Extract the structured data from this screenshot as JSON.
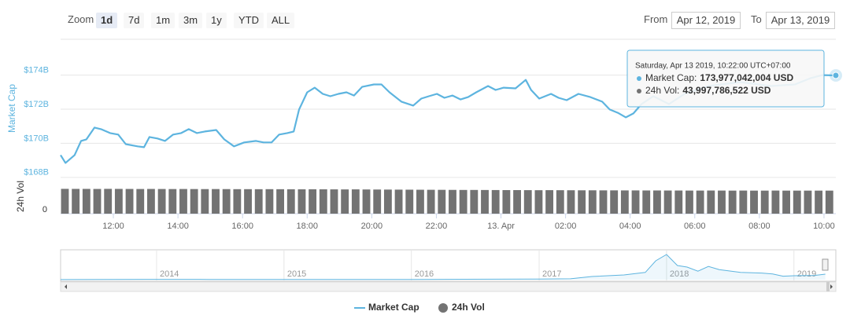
{
  "toolbar": {
    "zoom_label": "Zoom",
    "ranges": [
      "1d",
      "7d",
      "1m",
      "3m",
      "1y",
      "YTD",
      "ALL"
    ]
  },
  "date_range": {
    "from_label": "From",
    "from": "Apr 12, 2019",
    "to_label": "To",
    "to": "Apr 13, 2019"
  },
  "chart_data": [
    {
      "type": "line",
      "ylabel": "Market Cap",
      "y2label": "24h Vol",
      "xlim": [
        "2019-04-12T10:22",
        "2019-04-13T10:22"
      ],
      "xticks": [
        {
          "value": "2019-04-12T12:00",
          "label": "12:00"
        },
        {
          "value": "2019-04-12T14:00",
          "label": "14:00"
        },
        {
          "value": "2019-04-12T16:00",
          "label": "16:00"
        },
        {
          "value": "2019-04-12T18:00",
          "label": "18:00"
        },
        {
          "value": "2019-04-12T20:00",
          "label": "20:00"
        },
        {
          "value": "2019-04-12T22:00",
          "label": "22:00"
        },
        {
          "value": "2019-04-13T00:00",
          "label": "13. Apr"
        },
        {
          "value": "2019-04-13T02:00",
          "label": "02:00"
        },
        {
          "value": "2019-04-13T04:00",
          "label": "04:00"
        },
        {
          "value": "2019-04-13T06:00",
          "label": "06:00"
        },
        {
          "value": "2019-04-13T08:00",
          "label": "08:00"
        },
        {
          "value": "2019-04-13T10:00",
          "label": "10:00"
        }
      ],
      "ylim": [
        167.9,
        176.1
      ],
      "yticks": [
        {
          "value": 168,
          "label": "$168B"
        },
        {
          "value": 170,
          "label": "$170B"
        },
        {
          "value": 172,
          "label": "$172B"
        },
        {
          "value": 174,
          "label": "$174B"
        }
      ],
      "y2lim": [
        0,
        60
      ],
      "y2ticks": [
        0
      ],
      "grid": true,
      "series": [
        {
          "name": "Market Cap",
          "color": "#5db4df",
          "x": [
            "2019-04-12T10:22",
            "2019-04-12T10:31",
            "2019-04-12T10:48",
            "2019-04-12T11:00",
            "2019-04-12T11:10",
            "2019-04-12T11:25",
            "2019-04-12T11:37",
            "2019-04-12T11:54",
            "2019-04-12T12:09",
            "2019-04-12T12:23",
            "2019-04-12T12:45",
            "2019-04-12T12:57",
            "2019-04-12T13:07",
            "2019-04-12T13:22",
            "2019-04-12T13:36",
            "2019-04-12T13:51",
            "2019-04-12T14:06",
            "2019-04-12T14:20",
            "2019-04-12T14:35",
            "2019-04-12T14:50",
            "2019-04-12T15:11",
            "2019-04-12T15:26",
            "2019-04-12T15:44",
            "2019-04-12T16:03",
            "2019-04-12T16:25",
            "2019-04-12T16:39",
            "2019-04-12T16:54",
            "2019-04-12T17:08",
            "2019-04-12T17:23",
            "2019-04-12T17:35",
            "2019-04-12T17:45",
            "2019-04-12T18:00",
            "2019-04-12T18:14",
            "2019-04-12T18:29",
            "2019-04-12T18:43",
            "2019-04-12T18:58",
            "2019-04-12T19:13",
            "2019-04-12T19:27",
            "2019-04-12T19:42",
            "2019-04-12T20:04",
            "2019-04-12T20:18",
            "2019-04-12T20:33",
            "2019-04-12T20:55",
            "2019-04-12T21:17",
            "2019-04-12T21:32",
            "2019-04-12T21:46",
            "2019-04-12T22:01",
            "2019-04-12T22:15",
            "2019-04-12T22:30",
            "2019-04-12T22:45",
            "2019-04-12T22:59",
            "2019-04-12T23:14",
            "2019-04-12T23:36",
            "2019-04-12T23:50",
            "2019-04-13T00:05",
            "2019-04-13T00:27",
            "2019-04-13T00:46",
            "2019-04-13T00:56",
            "2019-04-13T01:11",
            "2019-04-13T01:33",
            "2019-04-13T01:47",
            "2019-04-13T02:02",
            "2019-04-13T02:24",
            "2019-04-13T02:46",
            "2019-04-13T03:08",
            "2019-04-13T03:22",
            "2019-04-13T03:37",
            "2019-04-13T03:52",
            "2019-04-13T04:06",
            "2019-04-13T04:21",
            "2019-04-13T04:43",
            "2019-04-13T05:12",
            "2019-04-13T05:41",
            "2019-04-13T06:25",
            "2019-04-13T07:24",
            "2019-04-13T08:22",
            "2019-04-13T09:06",
            "2019-04-13T09:35",
            "2019-04-13T09:57",
            "2019-04-13T10:22"
          ],
          "values": [
            169.31,
            168.85,
            169.31,
            170.14,
            170.23,
            170.92,
            170.83,
            170.6,
            170.51,
            169.95,
            169.82,
            169.77,
            170.37,
            170.28,
            170.14,
            170.51,
            170.6,
            170.83,
            170.6,
            170.69,
            170.78,
            170.23,
            169.82,
            170.05,
            170.14,
            170.05,
            170.05,
            170.51,
            170.6,
            170.69,
            171.98,
            172.99,
            173.26,
            172.9,
            172.76,
            172.9,
            172.99,
            172.8,
            173.31,
            173.45,
            173.45,
            172.99,
            172.44,
            172.21,
            172.62,
            172.76,
            172.9,
            172.67,
            172.8,
            172.57,
            172.71,
            172.99,
            173.36,
            173.13,
            173.26,
            173.22,
            173.72,
            173.13,
            172.62,
            172.9,
            172.67,
            172.53,
            172.9,
            172.71,
            172.44,
            171.98,
            171.79,
            171.52,
            171.75,
            172.3,
            172.76,
            172.3,
            172.9,
            173.36,
            173.59,
            173.36,
            173.45,
            173.82,
            174.0,
            173.98
          ]
        },
        {
          "name": "24h Vol",
          "type": "column",
          "axis": "y2",
          "color": "#737373",
          "x": [
            "2019-04-12T10:30",
            "2019-04-12T10:50",
            "2019-04-12T11:10",
            "2019-04-12T11:30",
            "2019-04-12T11:50",
            "2019-04-12T12:10",
            "2019-04-12T12:30",
            "2019-04-12T12:50",
            "2019-04-12T13:10",
            "2019-04-12T13:30",
            "2019-04-12T13:50",
            "2019-04-12T14:10",
            "2019-04-12T14:30",
            "2019-04-12T14:50",
            "2019-04-12T15:10",
            "2019-04-12T15:30",
            "2019-04-12T15:50",
            "2019-04-12T16:10",
            "2019-04-12T16:30",
            "2019-04-12T16:50",
            "2019-04-12T17:10",
            "2019-04-12T17:30",
            "2019-04-12T17:50",
            "2019-04-12T18:10",
            "2019-04-12T18:30",
            "2019-04-12T18:50",
            "2019-04-12T19:10",
            "2019-04-12T19:30",
            "2019-04-12T19:50",
            "2019-04-12T20:10",
            "2019-04-12T20:30",
            "2019-04-12T20:50",
            "2019-04-12T21:10",
            "2019-04-12T21:30",
            "2019-04-12T21:50",
            "2019-04-12T22:10",
            "2019-04-12T22:30",
            "2019-04-12T22:50",
            "2019-04-12T23:10",
            "2019-04-12T23:30",
            "2019-04-12T23:50",
            "2019-04-13T00:10",
            "2019-04-13T00:30",
            "2019-04-13T00:50",
            "2019-04-13T01:10",
            "2019-04-13T01:30",
            "2019-04-13T01:50",
            "2019-04-13T02:10",
            "2019-04-13T02:30",
            "2019-04-13T02:50",
            "2019-04-13T03:10",
            "2019-04-13T03:30",
            "2019-04-13T03:50",
            "2019-04-13T04:10",
            "2019-04-13T04:30",
            "2019-04-13T04:50",
            "2019-04-13T05:10",
            "2019-04-13T05:30",
            "2019-04-13T05:50",
            "2019-04-13T06:10",
            "2019-04-13T06:30",
            "2019-04-13T06:50",
            "2019-04-13T07:10",
            "2019-04-13T07:30",
            "2019-04-13T07:50",
            "2019-04-13T08:10",
            "2019-04-13T08:30",
            "2019-04-13T08:50",
            "2019-04-13T09:10",
            "2019-04-13T09:30",
            "2019-04-13T09:50",
            "2019-04-13T10:10"
          ],
          "values": [
            47.4,
            47.3,
            47.3,
            47.2,
            47.4,
            47.3,
            47.2,
            47.1,
            47.2,
            47.1,
            47.0,
            47.1,
            47.0,
            46.9,
            47.0,
            46.9,
            46.8,
            46.8,
            46.7,
            46.8,
            46.7,
            46.6,
            46.5,
            46.6,
            46.5,
            46.4,
            46.3,
            46.4,
            46.2,
            46.1,
            46.0,
            45.9,
            45.8,
            45.7,
            45.6,
            45.5,
            45.4,
            45.3,
            45.3,
            45.2,
            45.1,
            45.0,
            45.0,
            44.9,
            44.8,
            44.9,
            44.8,
            44.7,
            44.6,
            44.6,
            44.5,
            44.5,
            44.4,
            44.4,
            44.3,
            44.3,
            44.2,
            44.2,
            44.1,
            44.1,
            44.2,
            44.1,
            44.0,
            44.1,
            44.0,
            44.0,
            44.1,
            44.0,
            44.0,
            44.0,
            44.0,
            44.0
          ]
        }
      ],
      "tooltip": {
        "title": "Saturday, Apr 13 2019, 10:22:00 UTC+07:00",
        "items": [
          {
            "label": "Market Cap:",
            "value": "173,977,042,004 USD"
          },
          {
            "label": "24h Vol:",
            "value": "43,997,786,522 USD"
          }
        ]
      }
    },
    {
      "type": "area",
      "xlim": [
        "2013-04",
        "2019-05"
      ],
      "xticks": [
        {
          "value": "2014-01",
          "label": "2014"
        },
        {
          "value": "2015-01",
          "label": "2015"
        },
        {
          "value": "2016-01",
          "label": "2016"
        },
        {
          "value": "2017-01",
          "label": "2017"
        },
        {
          "value": "2018-01",
          "label": "2018"
        },
        {
          "value": "2019-01",
          "label": "2019"
        }
      ],
      "ylim": [
        0,
        900
      ],
      "color": "#5db4df",
      "x": [
        "2013-04",
        "2013-12",
        "2014-06",
        "2015-01",
        "2015-06",
        "2016-01",
        "2016-06",
        "2017-01",
        "2017-04",
        "2017-06",
        "2017-09",
        "2017-11",
        "2017-12",
        "2018-01",
        "2018-02",
        "2018-03",
        "2018-04",
        "2018-05",
        "2018-06",
        "2018-08",
        "2018-10",
        "2018-11",
        "2018-12",
        "2019-01",
        "2019-03",
        "2019-04"
      ],
      "values": [
        1.5,
        10,
        8,
        4,
        4,
        7,
        12,
        18,
        28,
        100,
        150,
        230,
        600,
        800,
        450,
        400,
        270,
        420,
        320,
        230,
        210,
        180,
        110,
        125,
        135,
        174
      ]
    }
  ]
}
